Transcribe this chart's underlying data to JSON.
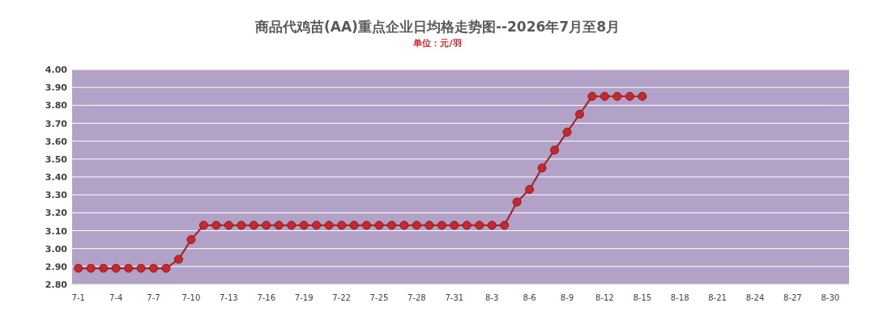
{
  "chart_data": {
    "type": "line",
    "title": "商品代鸡苗(AA)重点企业日均格走势图--2026年7月至8月",
    "subtitle": "单位：元/羽",
    "categories": [
      "7-1",
      null,
      null,
      "7-4",
      null,
      null,
      "7-7",
      null,
      null,
      "7-10",
      null,
      null,
      "7-13",
      null,
      null,
      "7-16",
      null,
      null,
      "7-19",
      null,
      null,
      "7-22",
      null,
      null,
      "7-25",
      null,
      null,
      "7-28",
      null,
      null,
      "7-31",
      null,
      null,
      "8-3",
      null,
      null,
      "8-6",
      null,
      null,
      "8-9",
      null,
      null,
      "8-12",
      null,
      null,
      "8-15",
      null,
      null,
      "8-18",
      null,
      null,
      "8-21",
      null,
      null,
      "8-24",
      null,
      null,
      "8-27",
      null,
      null,
      "8-30",
      null
    ],
    "series": [
      {
        "color": "#c8282c",
        "values": [
          2.89,
          2.89,
          2.89,
          2.89,
          2.89,
          2.89,
          2.89,
          2.89,
          2.94,
          3.05,
          3.13,
          3.13,
          3.13,
          3.13,
          3.13,
          3.13,
          3.13,
          3.13,
          3.13,
          3.13,
          3.13,
          3.13,
          3.13,
          3.13,
          3.13,
          3.13,
          3.13,
          3.13,
          3.13,
          3.13,
          3.13,
          3.13,
          3.13,
          3.13,
          3.13,
          3.26,
          3.33,
          3.45,
          3.55,
          3.65,
          3.75,
          3.85,
          3.85,
          3.85,
          3.85,
          3.85,
          null,
          null,
          null,
          null,
          null,
          null,
          null,
          null,
          null,
          null,
          null,
          null,
          null,
          null,
          null,
          null
        ]
      }
    ],
    "ylim": [
      2.8,
      4.0
    ],
    "yticks": [
      {
        "value": 2.8,
        "label": "2.80"
      },
      {
        "value": 2.9,
        "label": "2.90"
      },
      {
        "value": 3.0,
        "label": "3.00"
      },
      {
        "value": 3.1,
        "label": "3.10"
      },
      {
        "value": 3.2,
        "label": "3.20"
      },
      {
        "value": 3.3,
        "label": "3.30"
      },
      {
        "value": 3.4,
        "label": "3.40"
      },
      {
        "value": 3.5,
        "label": "3.50"
      },
      {
        "value": 3.6,
        "label": "3.60"
      },
      {
        "value": 3.7,
        "label": "3.70"
      },
      {
        "value": 3.8,
        "label": "3.80"
      },
      {
        "value": 3.9,
        "label": "3.90"
      },
      {
        "value": 4.0,
        "label": "4.00"
      }
    ],
    "grid": "y",
    "marker": "circle",
    "line_style": "solid"
  }
}
